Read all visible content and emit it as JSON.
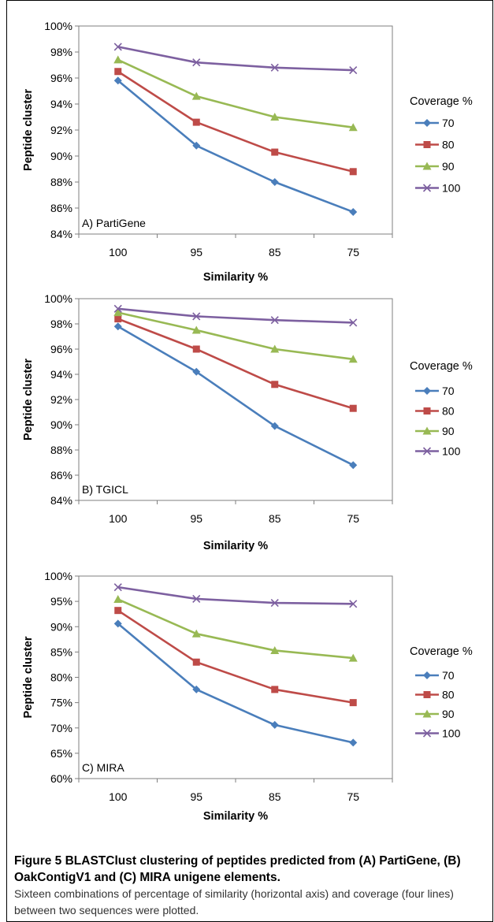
{
  "figure": {
    "caption_title": "Figure 5 BLASTClust clustering of peptides predicted from (A) PartiGene, (B) OakContigV1 and (C) MIRA unigene elements.",
    "caption_body": "Sixteen combinations of percentage of similarity (horizontal axis) and coverage (four lines) between two sequences were plotted."
  },
  "chart_data": [
    {
      "type": "line",
      "panel_label": "A) PartiGene",
      "xlabel": "Similarity %",
      "ylabel": "Peptide cluster",
      "categories": [
        "100",
        "95",
        "85",
        "75"
      ],
      "ylim": [
        84,
        100
      ],
      "yticks": [
        84,
        86,
        88,
        90,
        92,
        94,
        96,
        98,
        100
      ],
      "ytick_suffix": "%",
      "legend_title": "Coverage %",
      "legend_position": "right",
      "grid": false,
      "series": [
        {
          "name": "70",
          "values": [
            95.8,
            90.8,
            88.0,
            85.7
          ],
          "color": "#4A7EBB",
          "marker": "diamond"
        },
        {
          "name": "80",
          "values": [
            96.5,
            92.6,
            90.3,
            88.8
          ],
          "color": "#BE4B48",
          "marker": "square"
        },
        {
          "name": "90",
          "values": [
            97.4,
            94.6,
            93.0,
            92.2
          ],
          "color": "#98B954",
          "marker": "triangle"
        },
        {
          "name": "100",
          "values": [
            98.4,
            97.2,
            96.8,
            96.6
          ],
          "color": "#7D60A0",
          "marker": "x"
        }
      ]
    },
    {
      "type": "line",
      "panel_label": "B) TGICL",
      "xlabel": "Similarity %",
      "ylabel": "Peptide cluster",
      "categories": [
        "100",
        "95",
        "85",
        "75"
      ],
      "ylim": [
        84,
        100
      ],
      "yticks": [
        84,
        86,
        88,
        90,
        92,
        94,
        96,
        98,
        100
      ],
      "ytick_suffix": "%",
      "legend_title": "Coverage %",
      "legend_position": "right",
      "grid": false,
      "series": [
        {
          "name": "70",
          "values": [
            97.8,
            94.2,
            89.9,
            86.8
          ],
          "color": "#4A7EBB",
          "marker": "diamond"
        },
        {
          "name": "80",
          "values": [
            98.4,
            96.0,
            93.2,
            91.3
          ],
          "color": "#BE4B48",
          "marker": "square"
        },
        {
          "name": "90",
          "values": [
            98.9,
            97.5,
            96.0,
            95.2
          ],
          "color": "#98B954",
          "marker": "triangle"
        },
        {
          "name": "100",
          "values": [
            99.2,
            98.6,
            98.3,
            98.1
          ],
          "color": "#7D60A0",
          "marker": "x"
        }
      ]
    },
    {
      "type": "line",
      "panel_label": "C) MIRA",
      "xlabel": "Similarity %",
      "ylabel": "Peptide cluster",
      "categories": [
        "100",
        "95",
        "85",
        "75"
      ],
      "ylim": [
        60,
        100
      ],
      "yticks": [
        60,
        65,
        70,
        75,
        80,
        85,
        90,
        95,
        100
      ],
      "ytick_suffix": "%",
      "legend_title": "Coverage %",
      "legend_position": "right",
      "grid": false,
      "series": [
        {
          "name": "70",
          "values": [
            90.6,
            77.6,
            70.6,
            67.1
          ],
          "color": "#4A7EBB",
          "marker": "diamond"
        },
        {
          "name": "80",
          "values": [
            93.2,
            83.0,
            77.6,
            75.0
          ],
          "color": "#BE4B48",
          "marker": "square"
        },
        {
          "name": "90",
          "values": [
            95.4,
            88.6,
            85.3,
            83.8
          ],
          "color": "#98B954",
          "marker": "triangle"
        },
        {
          "name": "100",
          "values": [
            97.8,
            95.5,
            94.7,
            94.5
          ],
          "color": "#7D60A0",
          "marker": "x"
        }
      ]
    }
  ]
}
